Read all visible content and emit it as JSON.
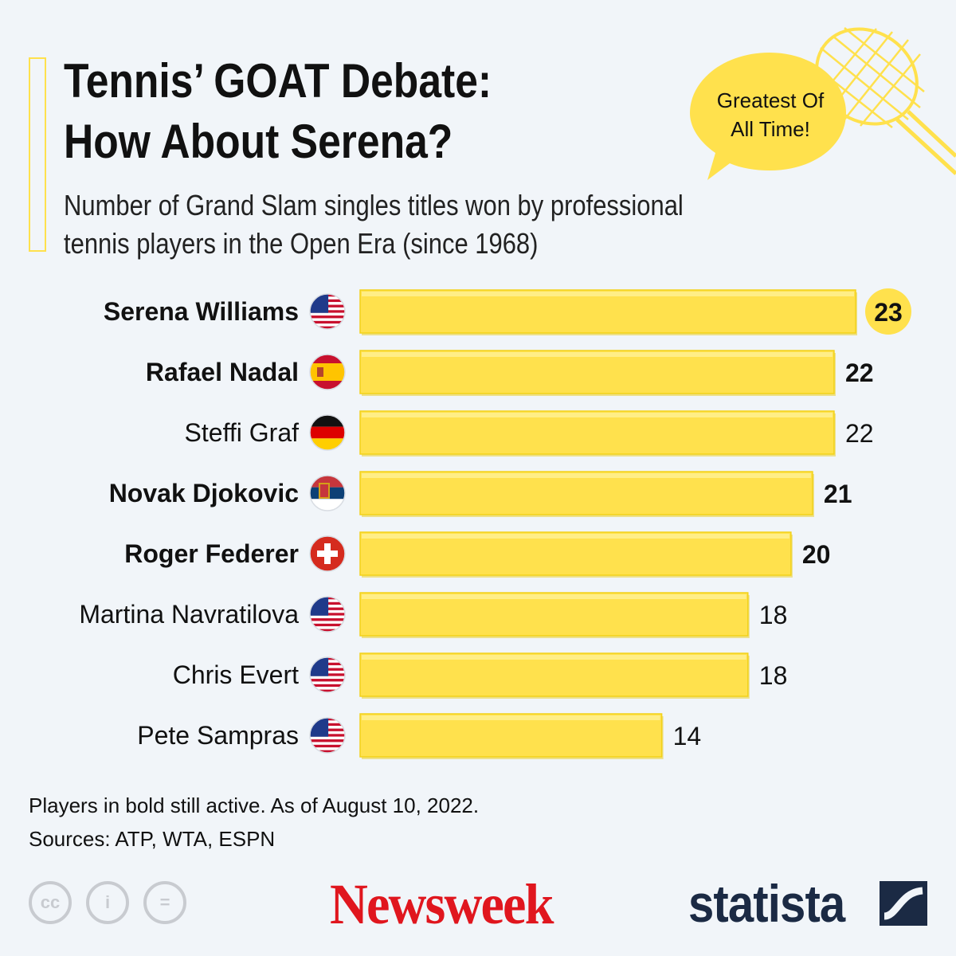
{
  "header": {
    "title_line1": "Tennis’ GOAT Debate:",
    "title_line2": "How About Serena?",
    "subtitle_line1": "Number of Grand Slam singles titles won by professional",
    "subtitle_line2": "tennis players in the Open Era (since 1968)",
    "accent_color": "#ffe14d"
  },
  "bubble": {
    "line1": "Greatest Of",
    "line2": "All Time!",
    "color": "#ffe14d",
    "icon": "tennis-racket-icon"
  },
  "chart_data": {
    "type": "bar",
    "orientation": "horizontal",
    "categories": [
      "Serena Williams",
      "Rafael Nadal",
      "Steffi Graf",
      "Novak Djokovic",
      "Roger Federer",
      "Martina Navratilova",
      "Chris Evert",
      "Pete Sampras"
    ],
    "values": [
      23,
      22,
      22,
      21,
      20,
      18,
      18,
      14
    ],
    "active": [
      true,
      true,
      false,
      true,
      true,
      false,
      false,
      false
    ],
    "flags": [
      "us-flag-icon",
      "spain-flag-icon",
      "germany-flag-icon",
      "serbia-flag-icon",
      "switzerland-flag-icon",
      "us-flag-icon",
      "us-flag-icon",
      "us-flag-icon"
    ],
    "bar_color": "#ffe14d",
    "highlight_color": "#ffe14d",
    "xlim": [
      0,
      23
    ]
  },
  "footer": {
    "note": "Players in bold still active. As of August 10, 2022.",
    "sources": "Sources: ATP, WTA, ESPN",
    "cc_labels": [
      "cc",
      "i",
      "="
    ],
    "newsweek": "Newsweek",
    "statista": "statista"
  }
}
